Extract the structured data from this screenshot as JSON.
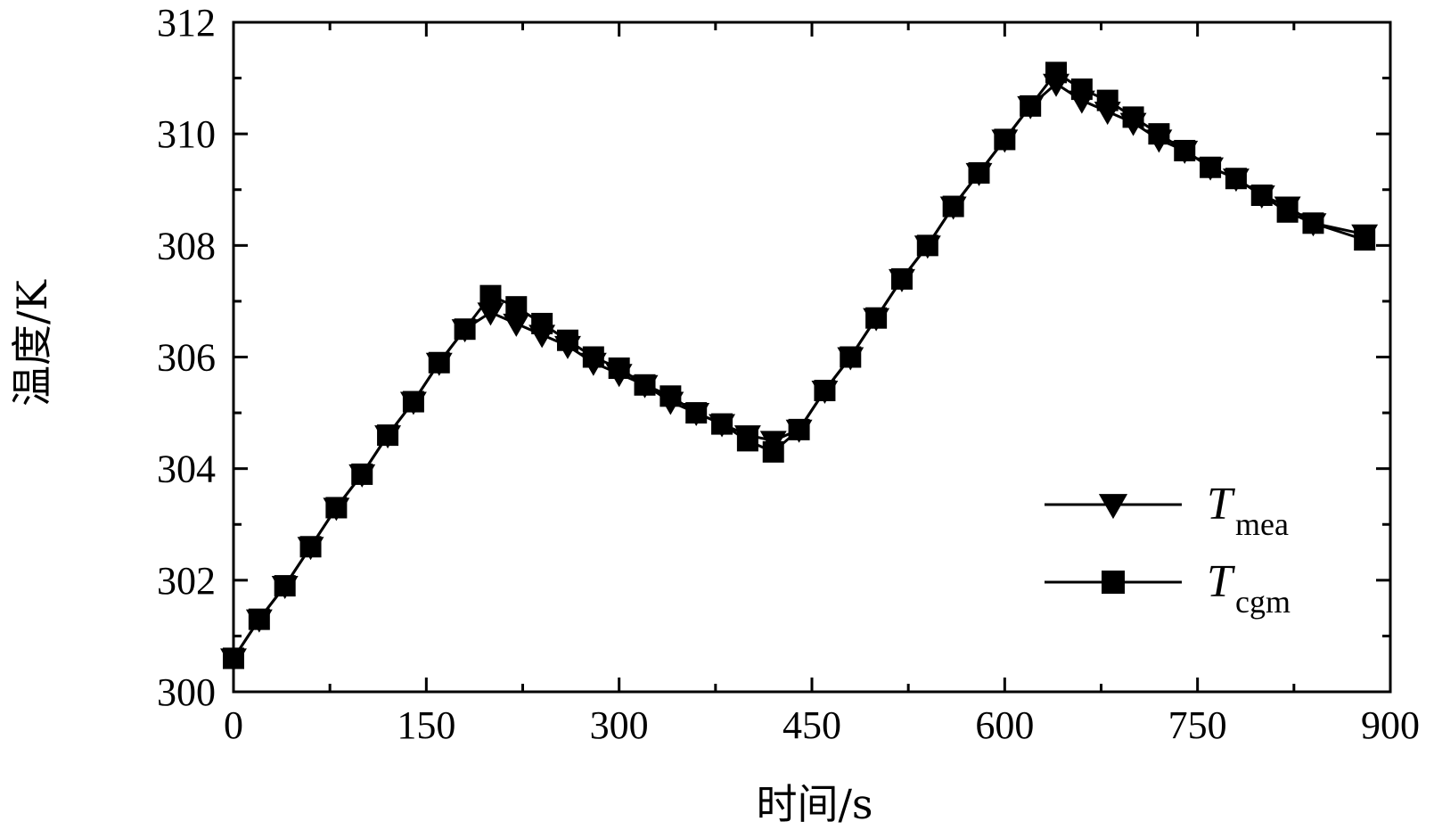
{
  "chart_data": {
    "type": "line",
    "title": "",
    "xlabel": "时间/s",
    "ylabel": "温度/K",
    "xlim": [
      0,
      900
    ],
    "ylim": [
      300,
      312
    ],
    "xticks": [
      0,
      150,
      300,
      450,
      600,
      750,
      900
    ],
    "xtick_labels": [
      "0",
      "150",
      "300",
      "450",
      "600",
      "750",
      "900"
    ],
    "yticks": [
      300,
      302,
      304,
      306,
      308,
      310,
      312
    ],
    "ytick_labels": [
      "300",
      "302",
      "304",
      "306",
      "308",
      "310",
      "312"
    ],
    "grid": false,
    "legend_position": "bottom-right",
    "x": [
      0,
      20,
      40,
      60,
      80,
      100,
      120,
      140,
      160,
      180,
      200,
      220,
      240,
      260,
      280,
      300,
      320,
      340,
      360,
      380,
      400,
      420,
      440,
      460,
      480,
      500,
      520,
      540,
      560,
      580,
      600,
      620,
      640,
      660,
      680,
      700,
      720,
      740,
      760,
      780,
      800,
      820,
      840,
      880
    ],
    "series": [
      {
        "name": "T",
        "subscript": "mea",
        "marker": "triangle-down",
        "color": "#000000",
        "values": [
          300.6,
          301.3,
          301.9,
          302.6,
          303.3,
          303.9,
          304.6,
          305.2,
          305.9,
          306.5,
          306.8,
          306.6,
          306.4,
          306.2,
          305.9,
          305.7,
          305.5,
          305.2,
          305.0,
          304.8,
          304.6,
          304.5,
          304.7,
          305.4,
          306.0,
          306.7,
          307.4,
          308.0,
          308.7,
          309.3,
          309.9,
          310.5,
          310.9,
          310.6,
          310.4,
          310.2,
          309.9,
          309.7,
          309.4,
          309.2,
          308.9,
          308.7,
          308.4,
          308.2
        ]
      },
      {
        "name": "T",
        "subscript": "cgm",
        "marker": "square",
        "color": "#000000",
        "values": [
          300.6,
          301.3,
          301.9,
          302.6,
          303.3,
          303.9,
          304.6,
          305.2,
          305.9,
          306.5,
          307.1,
          306.9,
          306.6,
          306.3,
          306.0,
          305.8,
          305.5,
          305.3,
          305.0,
          304.8,
          304.5,
          304.3,
          304.7,
          305.4,
          306.0,
          306.7,
          307.4,
          308.0,
          308.7,
          309.3,
          309.9,
          310.5,
          311.1,
          310.8,
          310.6,
          310.3,
          310.0,
          309.7,
          309.4,
          309.2,
          308.9,
          308.6,
          308.4,
          308.1
        ]
      }
    ]
  }
}
